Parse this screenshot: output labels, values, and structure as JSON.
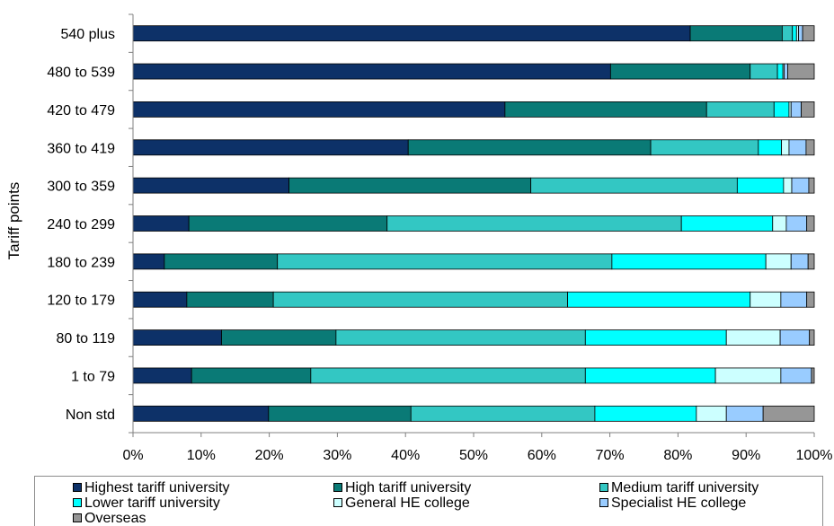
{
  "chart_data": {
    "type": "bar",
    "orientation": "horizontal",
    "stacked": "percent",
    "ylabel": "Tariff points",
    "xlabel": "",
    "xlim": [
      0,
      100
    ],
    "xticks": [
      "0%",
      "10%",
      "20%",
      "30%",
      "40%",
      "50%",
      "60%",
      "70%",
      "80%",
      "90%",
      "100%"
    ],
    "grid": false,
    "legend_position": "bottom",
    "categories": [
      "540 plus",
      "480 to 539",
      "420 to 479",
      "360 to 419",
      "300 to 359",
      "240 to 299",
      "180 to 239",
      "120 to 179",
      "80 to 119",
      "1 to 79",
      "Non std"
    ],
    "series": [
      {
        "name": "Highest tariff university",
        "color": "#0d3168",
        "values": [
          81.8,
          70.1,
          54.6,
          40.4,
          22.9,
          8.2,
          4.6,
          7.9,
          13.0,
          8.6,
          19.9
        ]
      },
      {
        "name": "High tariff university",
        "color": "#0a7a76",
        "values": [
          13.5,
          20.5,
          29.6,
          35.6,
          35.5,
          29.1,
          16.6,
          12.7,
          16.8,
          17.5,
          20.9
        ]
      },
      {
        "name": "Medium tariff university",
        "color": "#33c7c3",
        "values": [
          1.5,
          4.0,
          9.9,
          15.8,
          30.3,
          43.2,
          49.1,
          43.2,
          36.6,
          40.3,
          27.0
        ]
      },
      {
        "name": "Lower tariff university",
        "color": "#00ffff",
        "values": [
          0.6,
          0.8,
          2.2,
          3.4,
          6.8,
          13.4,
          22.6,
          26.8,
          20.7,
          19.1,
          14.9
        ]
      },
      {
        "name": "General HE college",
        "color": "#ccffff",
        "values": [
          0.3,
          0.2,
          0.3,
          1.1,
          1.2,
          2.0,
          3.7,
          4.5,
          7.9,
          9.6,
          4.4
        ]
      },
      {
        "name": "Specialist HE college",
        "color": "#99ccff",
        "values": [
          0.6,
          0.5,
          1.5,
          2.5,
          2.5,
          3.0,
          2.5,
          3.8,
          4.3,
          4.5,
          5.4
        ]
      },
      {
        "name": "Overseas",
        "color": "#969696",
        "values": [
          1.7,
          3.9,
          1.9,
          1.2,
          0.8,
          1.1,
          0.9,
          1.1,
          0.7,
          0.4,
          7.5
        ]
      }
    ]
  }
}
